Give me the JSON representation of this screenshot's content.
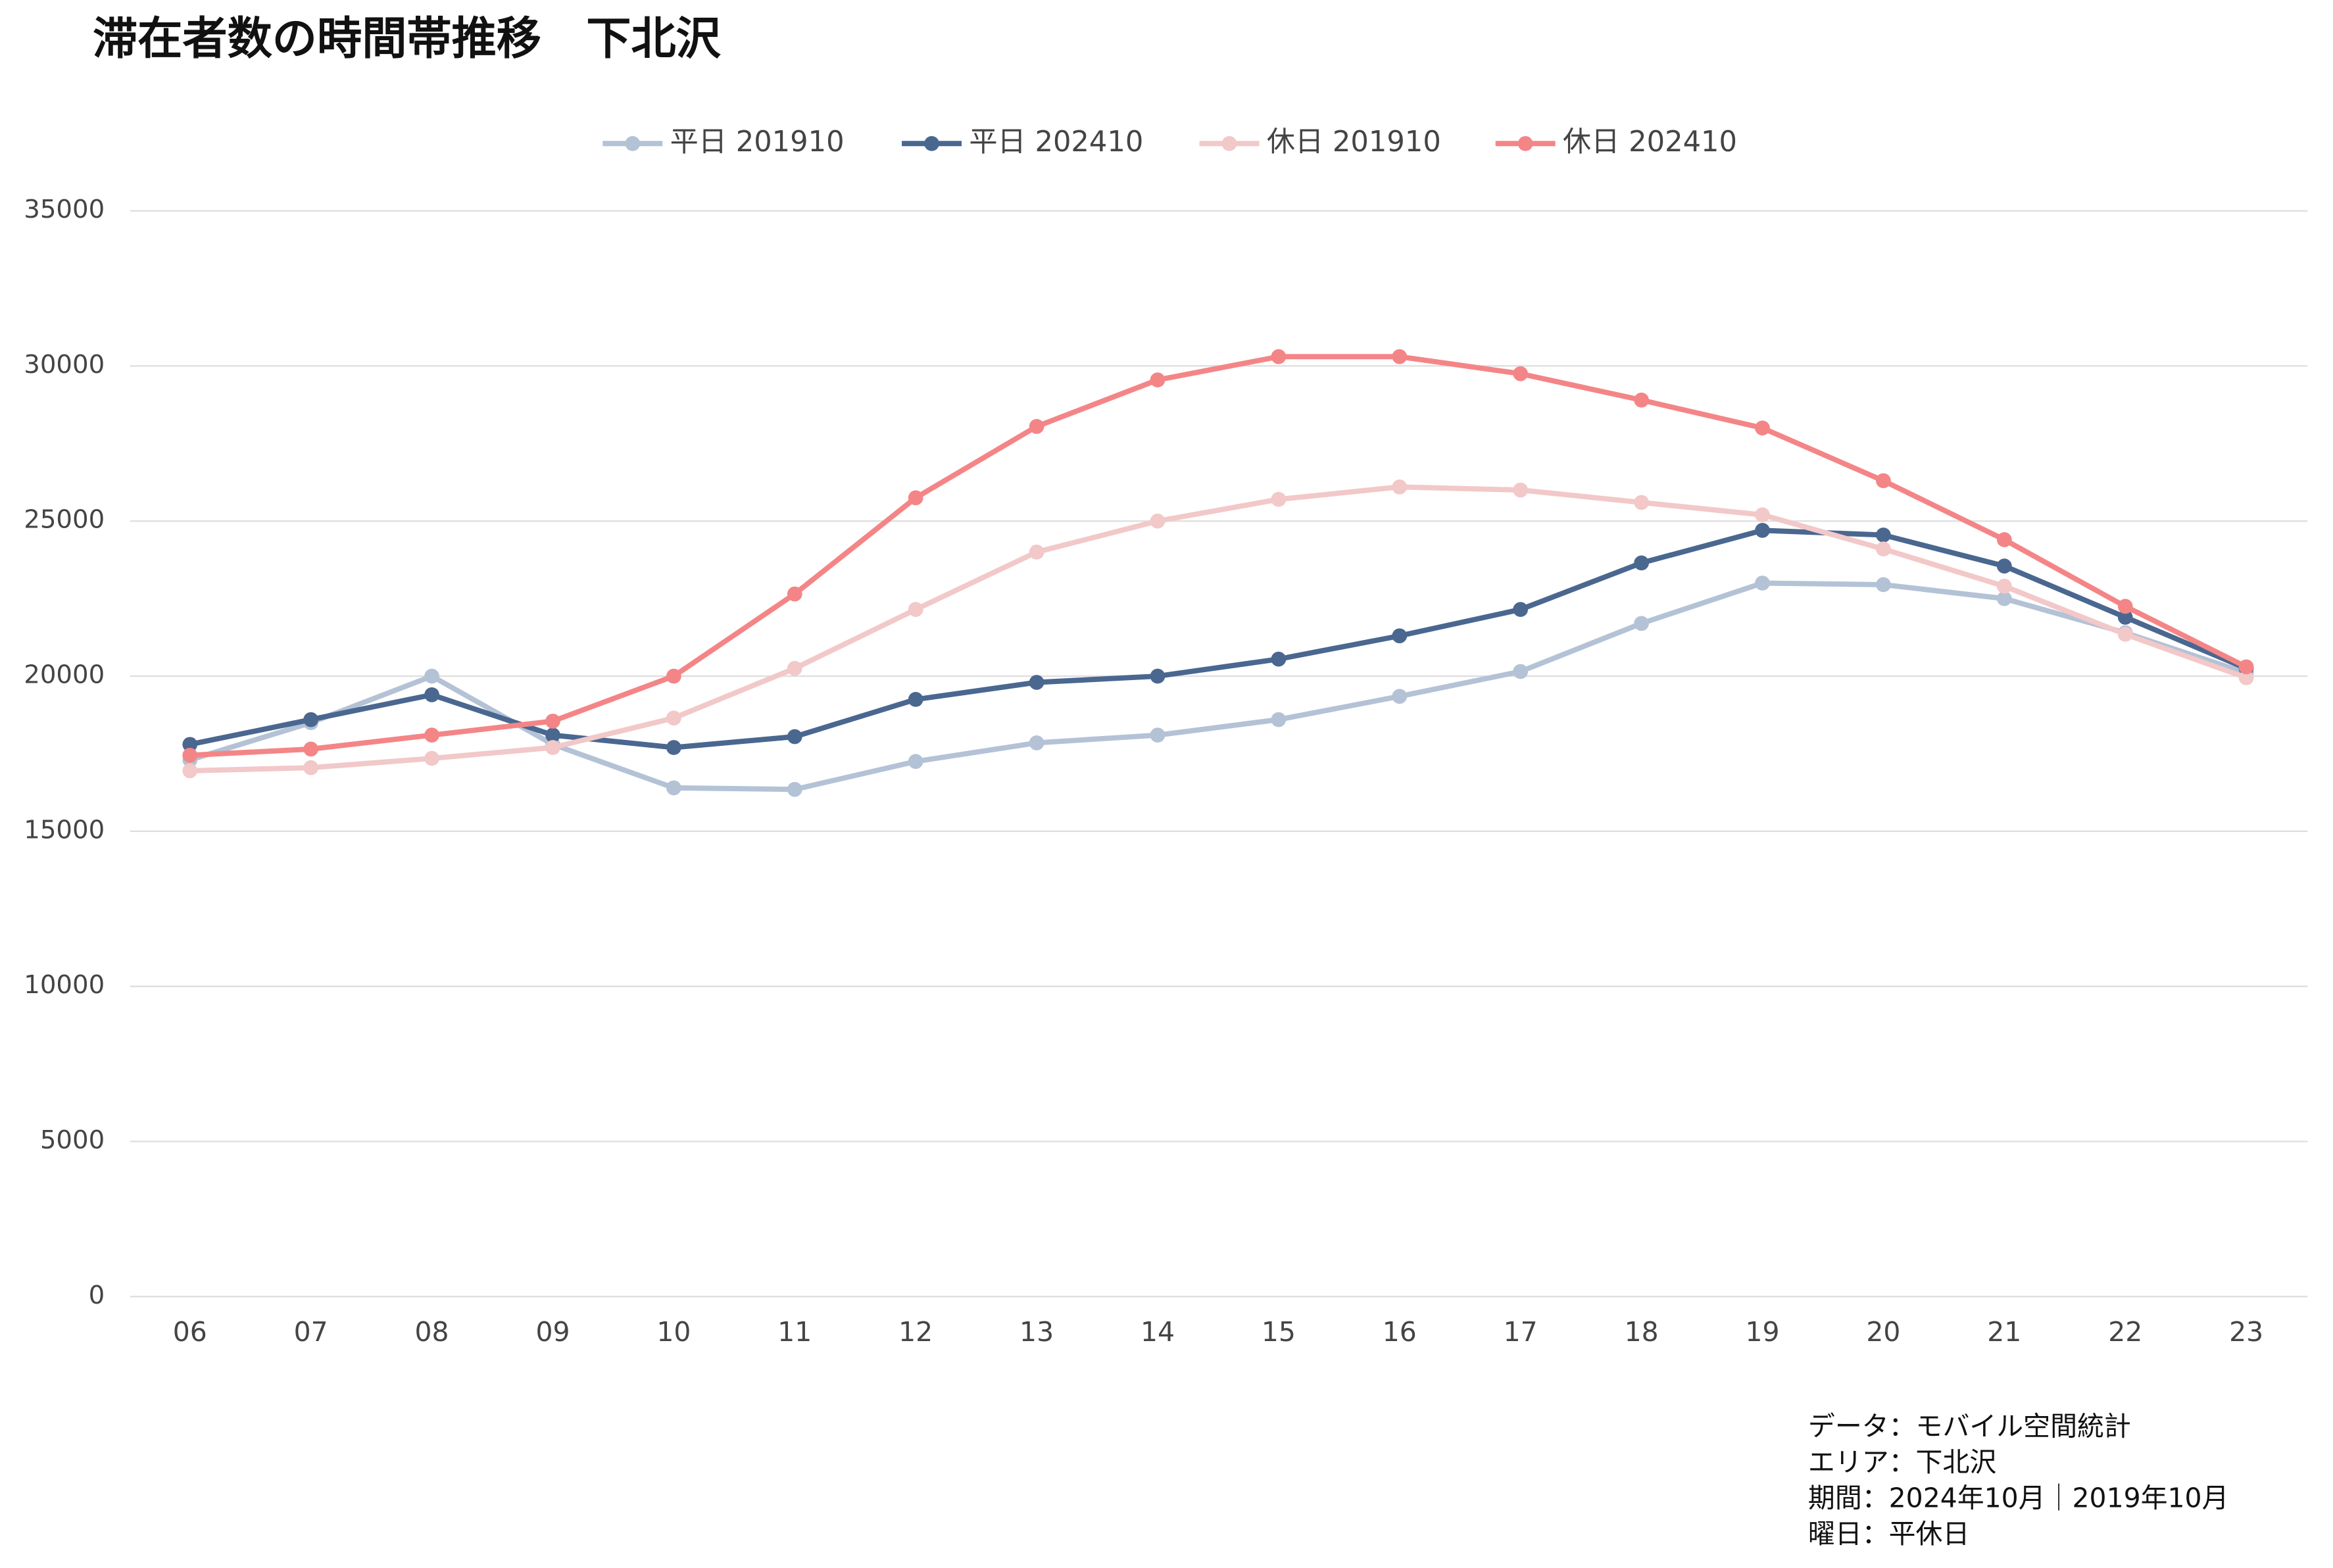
{
  "chart_data": {
    "type": "line",
    "title": "滞在者数の時間帯推移　下北沢",
    "categories": [
      "06",
      "07",
      "08",
      "09",
      "10",
      "11",
      "12",
      "13",
      "14",
      "15",
      "16",
      "17",
      "18",
      "19",
      "20",
      "21",
      "22",
      "23"
    ],
    "series": [
      {
        "name": "平日 201910",
        "color": "#b4c2d6",
        "values": [
          17300,
          18500,
          20000,
          17800,
          16400,
          16350,
          17250,
          17850,
          18100,
          18600,
          19350,
          20150,
          21700,
          23000,
          22950,
          22500,
          21400,
          20100
        ]
      },
      {
        "name": "平日 202410",
        "color": "#4a6790",
        "values": [
          17800,
          18600,
          19400,
          18100,
          17700,
          18050,
          19250,
          19800,
          20000,
          20550,
          21300,
          22150,
          23650,
          24700,
          24550,
          23550,
          21900,
          20250
        ]
      },
      {
        "name": "休日 201910",
        "color": "#f2c8c8",
        "values": [
          16950,
          17050,
          17350,
          17700,
          18650,
          20250,
          22150,
          24000,
          25000,
          25700,
          26100,
          26000,
          25600,
          25200,
          24100,
          22900,
          21350,
          19950
        ]
      },
      {
        "name": "休日 202410",
        "color": "#f48587",
        "values": [
          17450,
          17650,
          18100,
          18550,
          20000,
          22650,
          25750,
          28050,
          29550,
          30300,
          30300,
          29750,
          28900,
          28000,
          26300,
          24400,
          22250,
          20300
        ]
      }
    ],
    "ylim": [
      0,
      35000
    ],
    "yticks": [
      0,
      5000,
      10000,
      15000,
      20000,
      25000,
      30000,
      35000
    ],
    "grid": true,
    "legend": "top",
    "notes": [
      "データ：モバイル空間統計",
      "エリア：下北沢",
      "期間：2024年10月｜2019年10月",
      "曜日：平休日"
    ]
  }
}
